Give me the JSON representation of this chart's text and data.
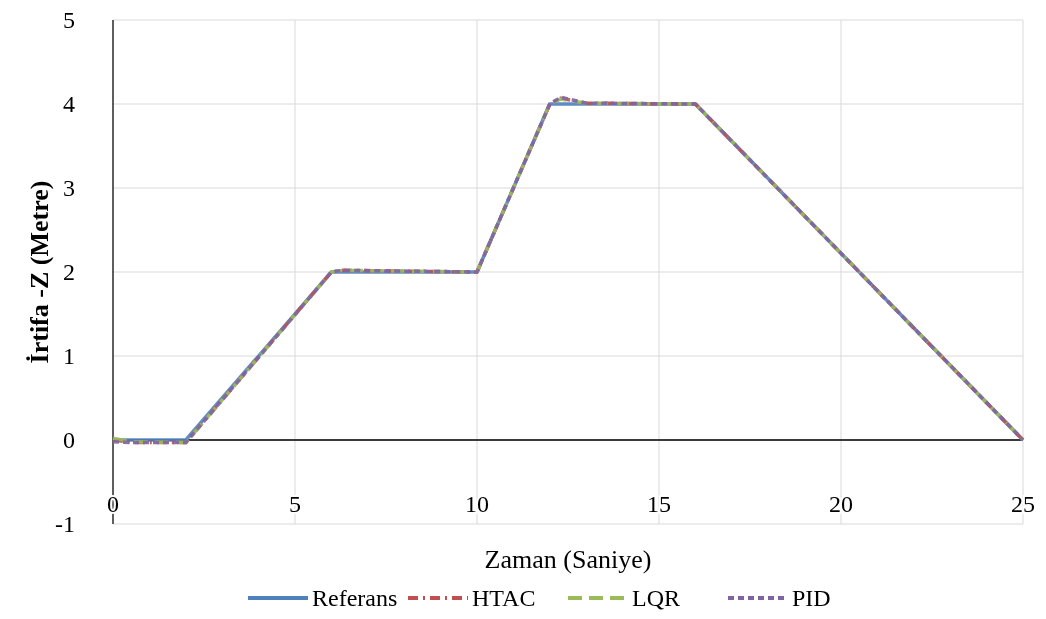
{
  "chart_data": {
    "type": "line",
    "xlabel": "Zaman  (Saniye)",
    "ylabel": "İrtifa -Z (Metre)",
    "xlim": [
      0,
      25
    ],
    "ylim": [
      -1,
      5
    ],
    "xticks": [
      0,
      5,
      10,
      15,
      20,
      25
    ],
    "yticks": [
      -1,
      0,
      1,
      2,
      3,
      4,
      5
    ],
    "grid": true,
    "legend": "bottom",
    "series": [
      {
        "name": "Referans",
        "color": "#4f81bd",
        "line_style": "solid",
        "x": [
          0,
          2,
          6,
          10,
          12,
          16,
          25
        ],
        "values": [
          0,
          0,
          2,
          2,
          4,
          4,
          0
        ]
      },
      {
        "name": "HTAC",
        "color": "#c0504d",
        "line_style": "dashdot",
        "x": [
          0,
          0.5,
          2,
          6,
          6.3,
          10,
          12,
          12.3,
          13,
          16,
          25
        ],
        "values": [
          0,
          -0.03,
          -0.03,
          2,
          2.02,
          2,
          4,
          4.07,
          4.01,
          4,
          0
        ]
      },
      {
        "name": "LQR",
        "color": "#9bbb59",
        "line_style": "dashed",
        "x": [
          0,
          0.5,
          2,
          6,
          6.3,
          10,
          12,
          12.3,
          13,
          16,
          25
        ],
        "values": [
          0.02,
          -0.02,
          -0.03,
          2,
          2.02,
          2,
          4,
          4.06,
          4.01,
          4,
          0
        ]
      },
      {
        "name": "PID",
        "color": "#8064a2",
        "line_style": "dotted",
        "x": [
          0,
          0.5,
          2,
          6,
          6.3,
          10,
          12,
          12.3,
          13,
          16,
          25
        ],
        "values": [
          -0.02,
          -0.03,
          -0.03,
          2,
          2.02,
          2,
          4,
          4.08,
          4.01,
          4,
          0
        ]
      }
    ]
  }
}
